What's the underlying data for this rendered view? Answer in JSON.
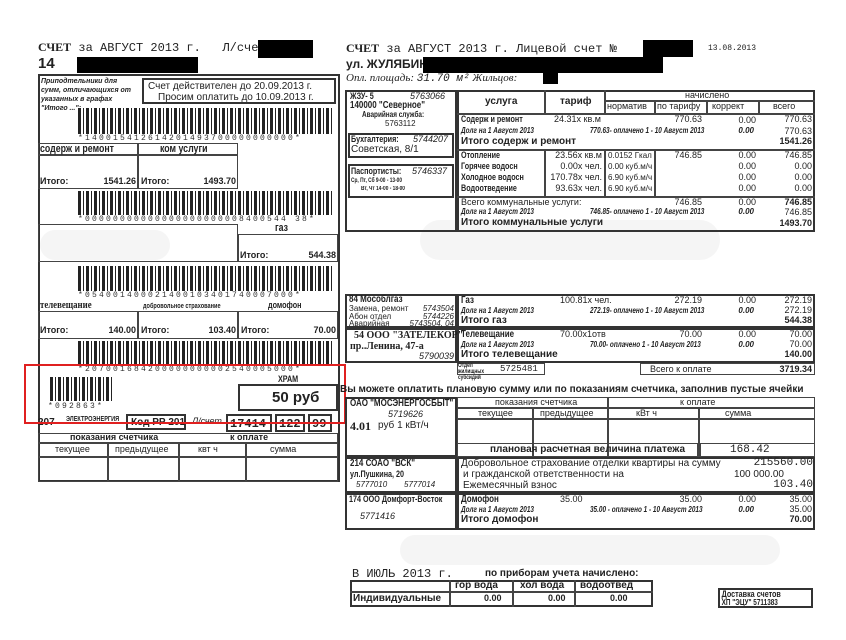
{
  "left": {
    "header": {
      "title": "СЧЕТ",
      "period": "за АВГУСТ 2013 г.",
      "account_label": "Л/счет",
      "line2": "14"
    },
    "note": "Приподтельники для сумм, отличающихся от указанных в графах \"Итого ...\";",
    "valid_until": "Счет действителен до 20.09.2013 г.",
    "pay_until": "Просим оплатить до 10.09.2013 г.",
    "barcodes": [
      "*140015412614201493700000000000*",
      "*00000000000000000000008400544 38*",
      "*054001400021400103401740007000*",
      "*207001684200000000002540005000*",
      "*092863*"
    ],
    "sections": [
      {
        "label": "содерж и ремонт",
        "total_label": "Итого:",
        "total": "1541.26"
      },
      {
        "label": "ком услуги",
        "total_label": "Итого:",
        "total": "1493.70"
      },
      {
        "label": "газ",
        "total_label": "Итого:",
        "total": "544.38"
      },
      {
        "label": "телевещание",
        "total_label": "Итого:",
        "total": "140.00"
      },
      {
        "label": "добровольное страхование",
        "total_label": "Итого:",
        "total": "103.40"
      },
      {
        "label": "домофон",
        "total_label": "Итого:",
        "total": "70.00"
      }
    ],
    "temple": {
      "label": "ХРАМ",
      "amount": "50 руб"
    },
    "electric": {
      "code": "207",
      "name": "ЭЛЕКТРОЭНЕРГИЯ",
      "rr": "Код РР 201",
      "acc_label": "Л/счет",
      "acc1": "17414",
      "acc2": "122",
      "acc3": "99"
    },
    "meter": {
      "readings": "показания счетчика",
      "to_pay": "к оплате",
      "current": "текущее",
      "previous": "предыдущее",
      "kwh": "квт ч",
      "sum": "сумма"
    }
  },
  "right": {
    "header": {
      "title": "СЧЕТ",
      "period": "за АВГУСТ 2013 г.",
      "account_label": "Лицевой счет №",
      "date": "13.08.2013",
      "street": "ул. ЖУЛЯБИНА",
      "area_label": "Опл. площадь:",
      "area": "31.70 м²",
      "residents_label": "Жильцов:"
    },
    "contacts": {
      "zhu": "ЖЗУ- 5",
      "zhu_phone": "5763066",
      "zhu_name": "140000 \"Северное\"",
      "emergency": "Аварийная служба:",
      "emergency_phone": "5763112",
      "accounting": "Бухгалтерия:",
      "accounting_phone": "5744207",
      "accounting_addr": "Советская, 8/1",
      "passport": "Паспортисты:",
      "passport_phone": "5746337",
      "passport_hours1": "Ср, Пт, Сб 9-00 - 13-00",
      "passport_hours2": "Вт, Чт 14-00 - 18-00"
    },
    "table_headers": {
      "service": "услуга",
      "tariff": "тариф",
      "charged": "начислено",
      "norm": "норматив",
      "by_tariff": "по тарифу",
      "correction": "коррект",
      "total": "всего"
    },
    "maint": {
      "name": "Содерж и ремонт",
      "tariff": "24.31x кв.м",
      "by_tariff": "770.63",
      "corr": "0.00",
      "total": "770.63",
      "debt": "Долг на 1 Август 2013",
      "debt_val": "770.63- оплачено 1 - 10 Август 2013",
      "paid": "0.00",
      "debt_total": "770.63",
      "sum_label": "Итого содерж и ремонт",
      "sum": "1541.26"
    },
    "utilities": [
      {
        "name": "Отопление",
        "tariff": "23.56x кв.м",
        "norm": "0.0152 Гкал",
        "by_tariff": "746.85",
        "corr": "0.00",
        "total": "746.85"
      },
      {
        "name": "Горячее водосн",
        "tariff": "0.00x чел.",
        "norm": "0.00 куб.м/ч",
        "by_tariff": "",
        "corr": "0.00",
        "total": "0.00"
      },
      {
        "name": "Холодное водосн",
        "tariff": "170.78x чел.",
        "norm": "6.90 куб.м/ч",
        "by_tariff": "",
        "corr": "0.00",
        "total": "0.00"
      },
      {
        "name": "Водоотведение",
        "tariff": "93.63x чел.",
        "norm": "6.90 куб.м/ч",
        "by_tariff": "",
        "corr": "0.00",
        "total": "0.00"
      }
    ],
    "util_sum": {
      "label": "Всего коммунальные услуги:",
      "by_tariff": "746.85",
      "corr": "0.00",
      "total": "746.85",
      "debt": "Долг на 1 Август 2013",
      "debt_val": "746.85- оплачено 1 - 10 Август 2013",
      "paid": "0.00",
      "debt_total": "746.85",
      "sum_label": "Итого коммунальные услуги",
      "sum": "1493.70"
    },
    "gas": {
      "org": "84 Мосoблгаз",
      "repair": "Замена, ремонт",
      "repair_phone": "5743504",
      "abon": "Абон отдел",
      "abon_phone": "5744226",
      "emerg": "Аварийная",
      "emerg_phone": "5743504, 04",
      "name": "Газ",
      "tariff": "100.81x чел.",
      "by_tariff": "272.19",
      "corr": "0.00",
      "total": "272.19",
      "debt": "Долг на 1 Август 2013",
      "debt_val": "272.19- оплачено 1 - 10 Август 2013",
      "paid": "0.00",
      "debt_total": "272.19",
      "sum_label": "Итого газ",
      "sum": "544.38"
    },
    "tv": {
      "org": "54 ООО \"ЗАТЕЛЕКОР\"",
      "addr": "пр..Ленина, 47-а",
      "phone": "5790039",
      "name": "Телевещание",
      "tariff": "70.00x1отв",
      "by_tariff": "70.00",
      "corr": "0.00",
      "total": "70.00",
      "debt": "Долг на 1 Август 2013",
      "debt_val": "70.00- оплачено 1 - 10 Август 2013",
      "paid": "0.00",
      "debt_total": "70.00",
      "sum_label": "Итого телевещание",
      "sum": "140.00"
    },
    "subsidy": {
      "label": "Отдел жилищных субсидий",
      "phone": "5725481"
    },
    "grand": {
      "label": "Всего к оплате",
      "value": "3719.34"
    },
    "hint": "Вы можете оплатить плановую сумму или по показаниям счетчика, заполнив пустые ячейки",
    "mes": {
      "org": "ОАО \"МОСЭНЕРГОСБЫТ\"",
      "phone": "5719626",
      "rate": "4.01",
      "rate_unit": "руб 1 кВт/ч",
      "readings": "показания счетчика",
      "to_pay": "к оплате",
      "current": "текущее",
      "previous": "предыдущее",
      "kwh": "кВт ч",
      "sum": "сумма",
      "plan_label": "плановая расчетная величина платежа",
      "plan": "168.42"
    },
    "vsk": {
      "org": "214 СОАО \"ВСК\"",
      "addr": "ул.Пушкина, 20",
      "phone1": "5777010",
      "phone2": "5777014",
      "line1": "Добровольное страхование отделки квартиры на сумму",
      "val1": "215560.00",
      "line2": "и гражданской ответственности на",
      "val2": "100 000.00",
      "line3": "Ежемесячный взнос",
      "val3": "103.40"
    },
    "dom": {
      "org": "174 ООО Домфорт-Восток",
      "phone": "5771416",
      "name": "Домофон",
      "tariff": "35.00",
      "by_tariff": "35.00",
      "corr": "0.00",
      "total": "35.00",
      "debt": "Долг на 1 Август 2013",
      "debt_val": "35.00 - оплачено 1 - 10 Август 2013",
      "paid": "0.00",
      "debt_total": "35.00",
      "sum_label": "Итого домофон",
      "sum": "70.00"
    },
    "july": {
      "title": "В  ИЮЛЬ 2013 г.",
      "subtitle": "по приборам учета начислено:",
      "cols": [
        "гор вода",
        "хол вода",
        "водоотвед"
      ],
      "row_label": "Индивидуальные",
      "values": [
        "0.00",
        "0.00",
        "0.00"
      ]
    },
    "delivery": {
      "label": "Доставка счетов",
      "sub": "ХП \"ЭЦУ\" 5711383"
    }
  }
}
